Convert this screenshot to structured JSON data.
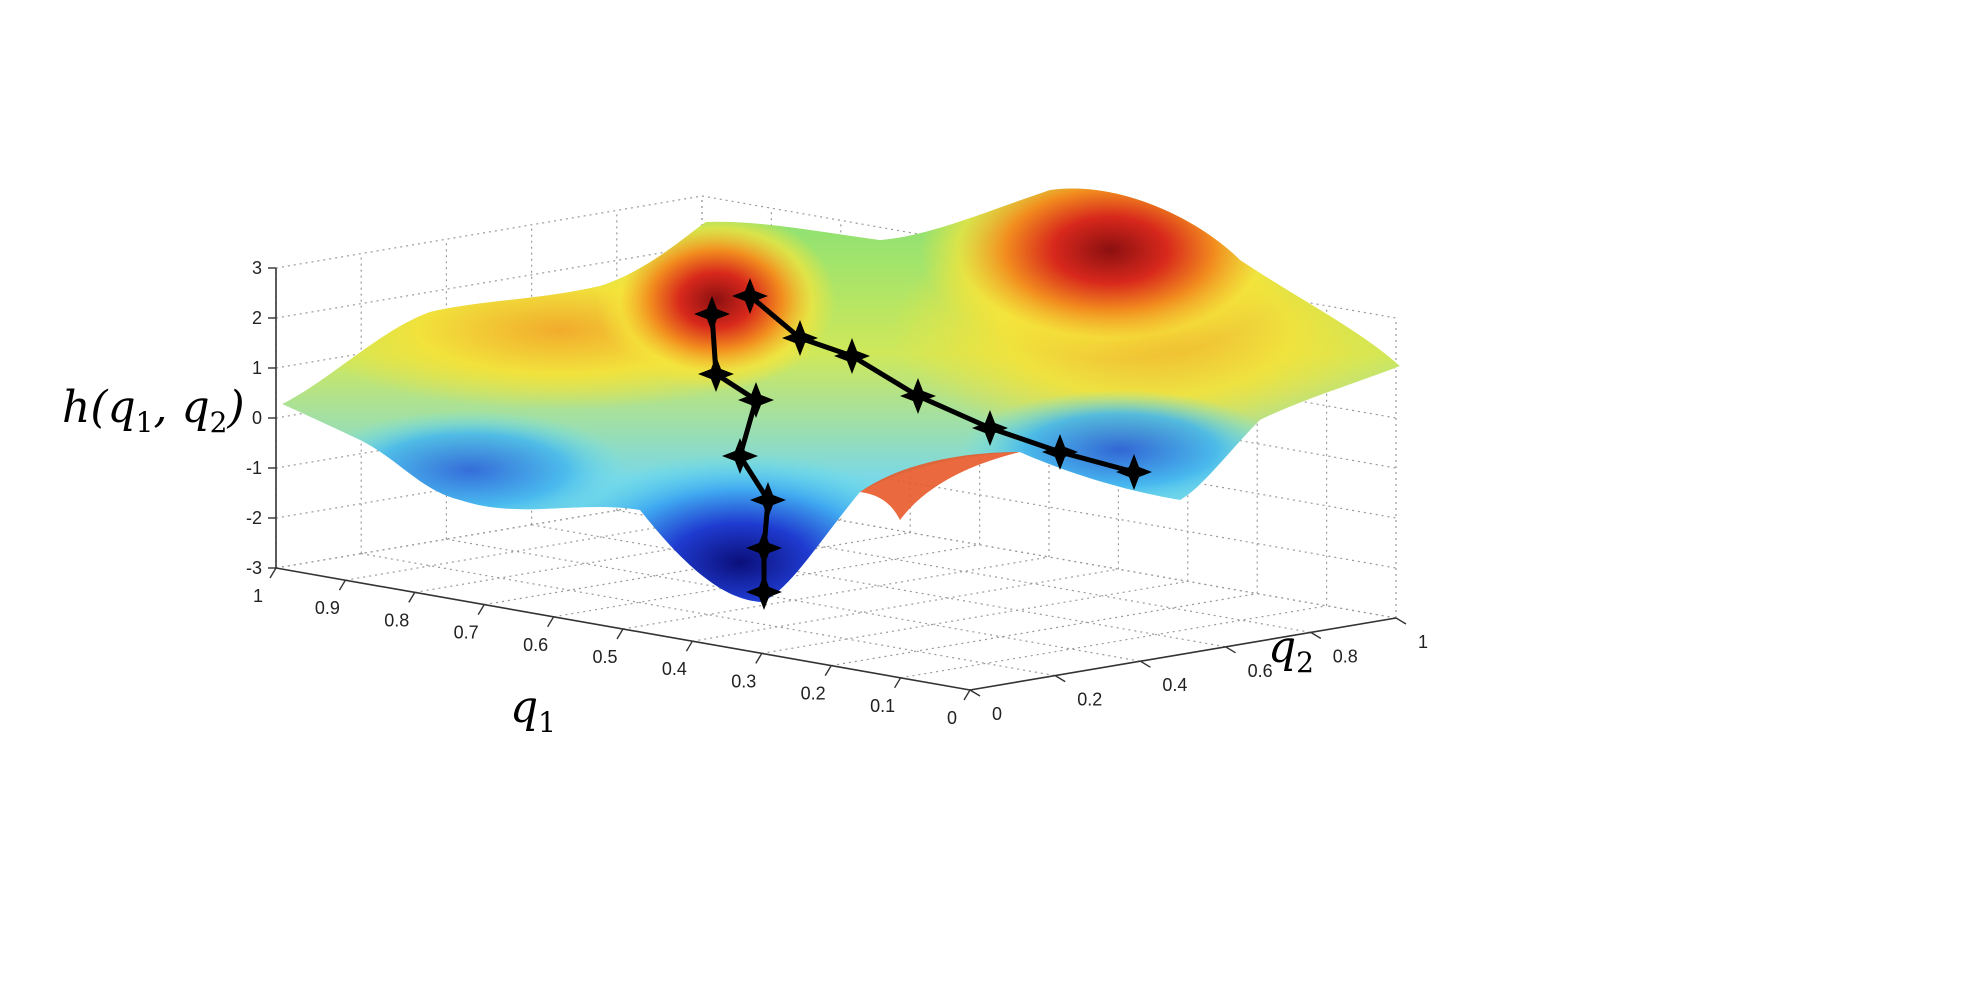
{
  "chart_data": {
    "type": "surface3d",
    "xlabel": "q",
    "xlabel_sub": "1",
    "ylabel": "q",
    "ylabel_sub": "2",
    "zlabel": "h(q",
    "zlabel_sub1": "1",
    "zlabel_mid": ", q",
    "zlabel_sub2": "2",
    "zlabel_end": ")",
    "xlim": [
      0,
      1
    ],
    "ylim": [
      0,
      1
    ],
    "zlim": [
      -3,
      3
    ],
    "x_ticks": [
      "1",
      "0.9",
      "0.8",
      "0.7",
      "0.6",
      "0.5",
      "0.4",
      "0.3",
      "0.2",
      "0.1",
      "0"
    ],
    "x_tick_values": [
      1,
      0.9,
      0.8,
      0.7,
      0.6,
      0.5,
      0.4,
      0.3,
      0.2,
      0.1,
      0
    ],
    "y_ticks": [
      "0",
      "0.2",
      "0.4",
      "0.6",
      "0.8",
      "1"
    ],
    "y_tick_values": [
      0,
      0.2,
      0.4,
      0.6,
      0.8,
      1
    ],
    "z_ticks": [
      "3",
      "2",
      "1",
      "0",
      "-1",
      "-2",
      "-3"
    ],
    "z_tick_values": [
      3,
      2,
      1,
      0,
      -1,
      -2,
      -3
    ],
    "grid": true,
    "colormap": "jet",
    "surface_peaks": [
      {
        "q1": 0.42,
        "q2": 0.18,
        "h": 2.5
      },
      {
        "q1": 0.08,
        "q2": 0.55,
        "h": 2.8
      }
    ],
    "surface_valleys": [
      {
        "q1": 0.22,
        "q2": 0.78,
        "h": -3.0
      },
      {
        "q1": 0.12,
        "q2": 0.25,
        "h": -1.2
      }
    ],
    "series": [
      {
        "points": [
          {
            "q1": 0.42,
            "q2": 0.22,
            "h": 2.0
          },
          {
            "q1": 0.42,
            "q2": 0.3,
            "h": 0.8
          },
          {
            "q1": 0.38,
            "q2": 0.36,
            "h": 0.3
          },
          {
            "q1": 0.36,
            "q2": 0.44,
            "h": -0.8
          },
          {
            "q1": 0.3,
            "q2": 0.52,
            "h": -1.7
          },
          {
            "q1": 0.26,
            "q2": 0.62,
            "h": -2.7
          },
          {
            "q1": 0.22,
            "q2": 0.74,
            "h": -3.0
          }
        ]
      },
      {
        "points": [
          {
            "q1": 0.4,
            "q2": 0.15,
            "h": 2.3
          },
          {
            "q1": 0.36,
            "q2": 0.18,
            "h": 1.5
          },
          {
            "q1": 0.32,
            "q2": 0.16,
            "h": 1.1
          },
          {
            "q1": 0.28,
            "q2": 0.15,
            "h": 0.4
          },
          {
            "q1": 0.22,
            "q2": 0.14,
            "h": -0.3
          },
          {
            "q1": 0.17,
            "q2": 0.14,
            "h": -0.7
          },
          {
            "q1": 0.12,
            "q2": 0.14,
            "h": -1.1
          }
        ]
      }
    ]
  },
  "colors": {
    "path": "#000000",
    "grid": "#9a9a9a",
    "axis": "#333333"
  }
}
